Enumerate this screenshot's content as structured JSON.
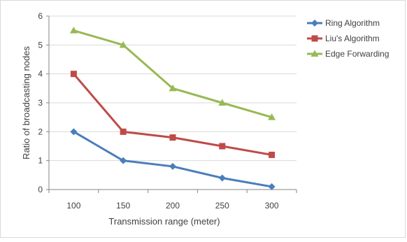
{
  "chart_data": {
    "type": "line",
    "title": "",
    "xlabel": "Transmission range (meter)",
    "ylabel": "Ratio of broadcasting nodes",
    "categories": [
      "100",
      "150",
      "200",
      "250",
      "300"
    ],
    "ylim": [
      0,
      6
    ],
    "yticks": [
      "0",
      "1",
      "2",
      "3",
      "4",
      "5",
      "6"
    ],
    "grid": true,
    "legend_position": "right",
    "series": [
      {
        "name": "Ring Algorithm",
        "color": "#4a7ebb",
        "marker": "diamond",
        "values": [
          2.0,
          1.0,
          0.8,
          0.4,
          0.1
        ]
      },
      {
        "name": "Liu's Algorithm",
        "color": "#be4b48",
        "marker": "square",
        "values": [
          4.0,
          2.0,
          1.8,
          1.5,
          1.2
        ]
      },
      {
        "name": "Edge Forwarding",
        "color": "#98b954",
        "marker": "triangle",
        "values": [
          5.5,
          5.0,
          3.5,
          3.0,
          2.5
        ]
      }
    ]
  }
}
